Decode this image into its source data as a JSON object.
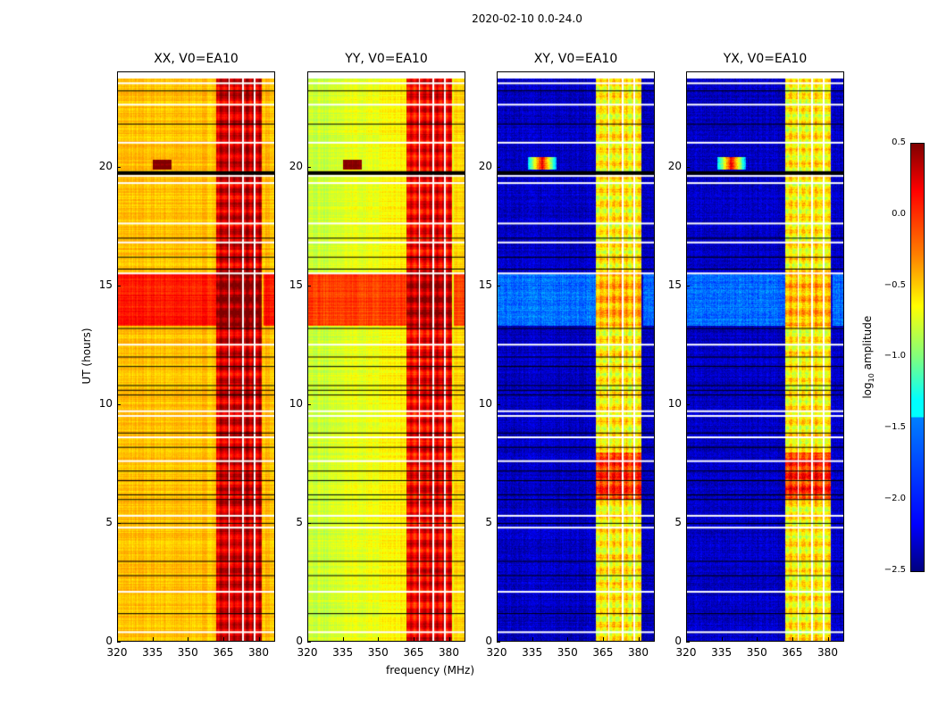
{
  "chart_data": {
    "type": "heatmap",
    "title": "2020-02-10 0.0-24.0",
    "xlabel": "frequency (MHz)",
    "ylabel": "UT (hours)",
    "xlim": [
      320,
      387
    ],
    "ylim": [
      0,
      24
    ],
    "xticks": [
      320,
      335,
      350,
      365,
      380
    ],
    "yticks": [
      0,
      5,
      10,
      15,
      20
    ],
    "colorbar": {
      "label": "log10 amplitude",
      "label_main": "log",
      "label_sub": "10",
      "label_rest": " amplitude",
      "vmin": -2.5,
      "vmax": 0.5,
      "ticks": [
        "0.5",
        "0.0",
        "−0.5",
        "−1.0",
        "−1.5",
        "−2.0",
        "−2.5"
      ],
      "colormap": "jet"
    },
    "panels": [
      {
        "title": "XX, V0=EA10",
        "base": -0.45,
        "band": 0.25,
        "bright_hours": [
          13.3,
          15.5
        ],
        "bright_level": 0.05
      },
      {
        "title": "YY, V0=EA10",
        "base": -0.7,
        "band": 0.15,
        "bright_hours": [
          13.3,
          15.5
        ],
        "bright_level": -0.05
      },
      {
        "title": "XY, V0=EA10",
        "base": -2.3,
        "band": -0.6,
        "bright_hours": [
          13.3,
          15.5
        ],
        "bright_level": -1.8
      },
      {
        "title": "YX, V0=EA10",
        "base": -2.3,
        "band": -0.6,
        "bright_hours": [
          13.3,
          15.5
        ],
        "bright_level": -1.8
      }
    ],
    "rfi_band_mhz": [
      362,
      382
    ],
    "flagged_hours_white": [
      0.4,
      2.1,
      4.8,
      5.3,
      7.6,
      8.6,
      9.5,
      9.7,
      12.5,
      15.5,
      16.8,
      17.6,
      19.3,
      19.6,
      21.0,
      22.6,
      23.5,
      23.8
    ],
    "flagged_hours_black": [
      1.2,
      2.8,
      3.4,
      5.0,
      6.0,
      6.2,
      6.8,
      7.2,
      8.2,
      8.8,
      10.4,
      10.6,
      10.8,
      11.6,
      12.0,
      13.2,
      15.7,
      16.2,
      17.0,
      19.8,
      21.8,
      23.2
    ]
  }
}
